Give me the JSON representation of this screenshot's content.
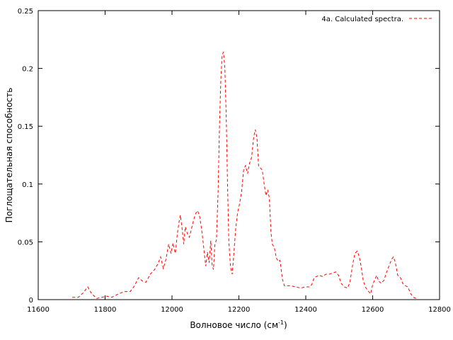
{
  "chart_data": {
    "type": "line",
    "title": "",
    "xlabel": "Волновое число (см",
    "xlabel_sup": "-1",
    "xlabel_suffix": ")",
    "ylabel": "Поглощательная способность",
    "xlim": [
      11600,
      12800
    ],
    "ylim": [
      0,
      0.25
    ],
    "x_ticks": [
      11600,
      11800,
      12000,
      12200,
      12400,
      12600,
      12800
    ],
    "y_ticks": [
      0,
      0.05,
      0.1,
      0.15,
      0.2,
      0.25
    ],
    "x_tick_labels": [
      "11600",
      "11800",
      "12000",
      "12200",
      "12400",
      "12600",
      "12800"
    ],
    "y_tick_labels": [
      "0",
      "0.05",
      "0.1",
      "0.15",
      "0.2",
      "0.25"
    ],
    "grid": false,
    "legend_position": "top-right",
    "series": [
      {
        "name": "4a. Calculated spectra.",
        "color": "#ff0000",
        "line_style": "dashed",
        "points": [
          [
            11702,
            0.002
          ],
          [
            11720,
            0.002
          ],
          [
            11735,
            0.006
          ],
          [
            11748,
            0.011
          ],
          [
            11760,
            0.005
          ],
          [
            11775,
            0.001
          ],
          [
            11790,
            0.002
          ],
          [
            11805,
            0.003
          ],
          [
            11820,
            0.002
          ],
          [
            11840,
            0.005
          ],
          [
            11858,
            0.007
          ],
          [
            11875,
            0.007
          ],
          [
            11888,
            0.012
          ],
          [
            11900,
            0.019
          ],
          [
            11912,
            0.016
          ],
          [
            11922,
            0.015
          ],
          [
            11935,
            0.022
          ],
          [
            11948,
            0.026
          ],
          [
            11958,
            0.031
          ],
          [
            11966,
            0.037
          ],
          [
            11974,
            0.027
          ],
          [
            11982,
            0.035
          ],
          [
            11990,
            0.048
          ],
          [
            11997,
            0.04
          ],
          [
            12003,
            0.049
          ],
          [
            12010,
            0.04
          ],
          [
            12016,
            0.057
          ],
          [
            12021,
            0.067
          ],
          [
            12025,
            0.073
          ],
          [
            12030,
            0.062
          ],
          [
            12035,
            0.048
          ],
          [
            12040,
            0.063
          ],
          [
            12046,
            0.057
          ],
          [
            12052,
            0.054
          ],
          [
            12058,
            0.061
          ],
          [
            12064,
            0.068
          ],
          [
            12070,
            0.074
          ],
          [
            12076,
            0.077
          ],
          [
            12082,
            0.073
          ],
          [
            12088,
            0.062
          ],
          [
            12093,
            0.05
          ],
          [
            12097,
            0.039
          ],
          [
            12101,
            0.029
          ],
          [
            12106,
            0.041
          ],
          [
            12111,
            0.032
          ],
          [
            12116,
            0.051
          ],
          [
            12120,
            0.03
          ],
          [
            12124,
            0.026
          ],
          [
            12128,
            0.047
          ],
          [
            12133,
            0.052
          ],
          [
            12138,
            0.095
          ],
          [
            12142,
            0.15
          ],
          [
            12146,
            0.19
          ],
          [
            12150,
            0.212
          ],
          [
            12154,
            0.214
          ],
          [
            12158,
            0.2
          ],
          [
            12162,
            0.16
          ],
          [
            12166,
            0.1
          ],
          [
            12170,
            0.05
          ],
          [
            12175,
            0.028
          ],
          [
            12180,
            0.022
          ],
          [
            12185,
            0.04
          ],
          [
            12190,
            0.06
          ],
          [
            12196,
            0.075
          ],
          [
            12202,
            0.083
          ],
          [
            12208,
            0.093
          ],
          [
            12214,
            0.112
          ],
          [
            12220,
            0.116
          ],
          [
            12226,
            0.109
          ],
          [
            12232,
            0.118
          ],
          [
            12238,
            0.123
          ],
          [
            12244,
            0.14
          ],
          [
            12249,
            0.147
          ],
          [
            12254,
            0.14
          ],
          [
            12259,
            0.115
          ],
          [
            12264,
            0.114
          ],
          [
            12270,
            0.112
          ],
          [
            12276,
            0.099
          ],
          [
            12281,
            0.09
          ],
          [
            12286,
            0.095
          ],
          [
            12291,
            0.088
          ],
          [
            12296,
            0.058
          ],
          [
            12300,
            0.048
          ],
          [
            12306,
            0.045
          ],
          [
            12312,
            0.036
          ],
          [
            12318,
            0.033
          ],
          [
            12323,
            0.034
          ],
          [
            12330,
            0.018
          ],
          [
            12336,
            0.012
          ],
          [
            12345,
            0.012
          ],
          [
            12355,
            0.012
          ],
          [
            12370,
            0.011
          ],
          [
            12385,
            0.01
          ],
          [
            12398,
            0.011
          ],
          [
            12410,
            0.011
          ],
          [
            12418,
            0.013
          ],
          [
            12425,
            0.019
          ],
          [
            12432,
            0.02
          ],
          [
            12440,
            0.021
          ],
          [
            12450,
            0.02
          ],
          [
            12460,
            0.022
          ],
          [
            12470,
            0.022
          ],
          [
            12480,
            0.023
          ],
          [
            12490,
            0.024
          ],
          [
            12498,
            0.021
          ],
          [
            12506,
            0.014
          ],
          [
            12515,
            0.011
          ],
          [
            12525,
            0.01
          ],
          [
            12532,
            0.015
          ],
          [
            12540,
            0.03
          ],
          [
            12547,
            0.04
          ],
          [
            12554,
            0.042
          ],
          [
            12560,
            0.037
          ],
          [
            12566,
            0.028
          ],
          [
            12572,
            0.016
          ],
          [
            12580,
            0.01
          ],
          [
            12588,
            0.007
          ],
          [
            12594,
            0.005
          ],
          [
            12600,
            0.013
          ],
          [
            12606,
            0.017
          ],
          [
            12612,
            0.021
          ],
          [
            12618,
            0.016
          ],
          [
            12626,
            0.014
          ],
          [
            12634,
            0.017
          ],
          [
            12642,
            0.024
          ],
          [
            12650,
            0.03
          ],
          [
            12657,
            0.035
          ],
          [
            12662,
            0.037
          ],
          [
            12668,
            0.032
          ],
          [
            12675,
            0.021
          ],
          [
            12683,
            0.019
          ],
          [
            12690,
            0.014
          ],
          [
            12698,
            0.012
          ],
          [
            12705,
            0.011
          ],
          [
            12714,
            0.005
          ],
          [
            12722,
            0.002
          ],
          [
            12730,
            0.001
          ]
        ]
      }
    ]
  }
}
